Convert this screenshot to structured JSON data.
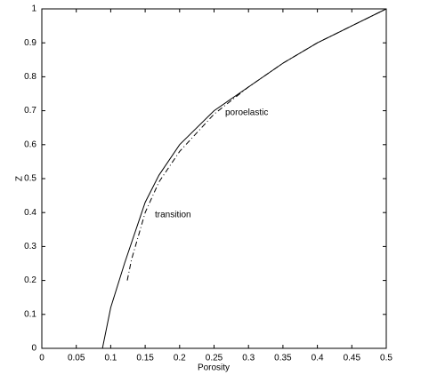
{
  "chart_data": {
    "type": "line",
    "xlabel": "Porosity",
    "ylabel": "Z",
    "xlim": [
      0,
      0.5
    ],
    "ylim": [
      0,
      1
    ],
    "xticks": [
      0,
      0.05,
      0.1,
      0.15,
      0.2,
      0.25,
      0.3,
      0.35,
      0.4,
      0.45,
      0.5
    ],
    "yticks": [
      0,
      0.1,
      0.2,
      0.3,
      0.4,
      0.5,
      0.6,
      0.7,
      0.8,
      0.9,
      1
    ],
    "annotations": [
      "poroelastic",
      "transition"
    ],
    "series": [
      {
        "color": "#000000",
        "dash": "solid",
        "x": [
          0.088,
          0.1,
          0.12,
          0.14,
          0.15,
          0.17,
          0.2,
          0.25,
          0.3,
          0.35,
          0.4,
          0.45,
          0.5
        ],
        "values": [
          0,
          0.12,
          0.25,
          0.37,
          0.43,
          0.51,
          0.6,
          0.7,
          0.77,
          0.84,
          0.9,
          0.95,
          1
        ]
      },
      {
        "color": "#000000",
        "dash": "dashdot",
        "x": [
          0.124,
          0.13,
          0.14,
          0.15,
          0.17,
          0.2,
          0.25,
          0.3,
          0.35,
          0.4,
          0.45,
          0.5
        ],
        "values": [
          0.2,
          0.26,
          0.33,
          0.4,
          0.49,
          0.58,
          0.69,
          0.77,
          0.84,
          0.9,
          0.95,
          1
        ]
      }
    ]
  }
}
